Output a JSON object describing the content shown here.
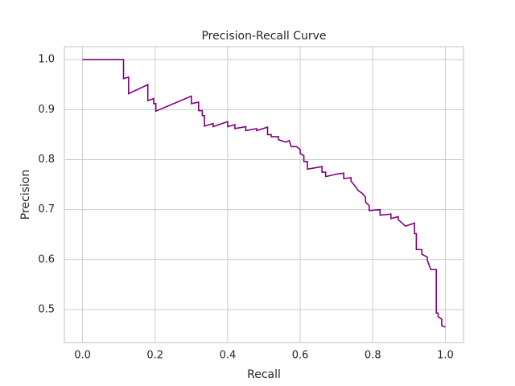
{
  "chart_data": {
    "type": "line",
    "title": "Precision-Recall Curve",
    "xlabel": "Recall",
    "ylabel": "Precision",
    "x": [
      0,
      0.113,
      0.113,
      0.127,
      0.127,
      0.18,
      0.18,
      0.196,
      0.196,
      0.202,
      0.202,
      0.3,
      0.3,
      0.32,
      0.32,
      0.33,
      0.33,
      0.336,
      0.336,
      0.36,
      0.36,
      0.4,
      0.4,
      0.42,
      0.42,
      0.45,
      0.45,
      0.48,
      0.48,
      0.51,
      0.51,
      0.52,
      0.52,
      0.54,
      0.54,
      0.56,
      0.57,
      0.575,
      0.59,
      0.6,
      0.6,
      0.61,
      0.61,
      0.62,
      0.62,
      0.66,
      0.66,
      0.67,
      0.67,
      0.7,
      0.72,
      0.72,
      0.74,
      0.74,
      0.75,
      0.76,
      0.77,
      0.78,
      0.78,
      0.79,
      0.79,
      0.82,
      0.82,
      0.85,
      0.85,
      0.87,
      0.87,
      0.89,
      0.915,
      0.915,
      0.92,
      0.92,
      0.935,
      0.935,
      0.95,
      0.95,
      0.96,
      0.975,
      0.975,
      0.98,
      0.98,
      0.99,
      0.99,
      1.0
    ],
    "values": [
      1.0,
      1.0,
      0.962,
      0.965,
      0.932,
      0.95,
      0.918,
      0.922,
      0.912,
      0.912,
      0.897,
      0.927,
      0.912,
      0.915,
      0.898,
      0.898,
      0.888,
      0.888,
      0.867,
      0.872,
      0.866,
      0.876,
      0.866,
      0.87,
      0.862,
      0.866,
      0.858,
      0.862,
      0.858,
      0.865,
      0.85,
      0.85,
      0.846,
      0.846,
      0.84,
      0.835,
      0.838,
      0.826,
      0.826,
      0.82,
      0.812,
      0.808,
      0.796,
      0.796,
      0.781,
      0.786,
      0.775,
      0.775,
      0.766,
      0.771,
      0.773,
      0.762,
      0.764,
      0.757,
      0.748,
      0.738,
      0.733,
      0.725,
      0.715,
      0.708,
      0.698,
      0.7,
      0.689,
      0.691,
      0.682,
      0.686,
      0.68,
      0.667,
      0.673,
      0.652,
      0.652,
      0.62,
      0.62,
      0.611,
      0.605,
      0.599,
      0.58,
      0.58,
      0.493,
      0.493,
      0.486,
      0.481,
      0.468,
      0.465
    ],
    "color": "purple",
    "xlim": [
      -0.05,
      1.05
    ],
    "ylim": [
      0.434,
      1.026
    ],
    "xticks": [
      {
        "value": 0,
        "label": "0.0"
      },
      0.2,
      0.4,
      0.6,
      0.8,
      {
        "value": 1,
        "label": "1.0"
      }
    ],
    "yticks": [
      0.5,
      0.6,
      0.7,
      0.8,
      0.9,
      {
        "value": 1,
        "label": "1.0"
      }
    ],
    "grid": true
  }
}
